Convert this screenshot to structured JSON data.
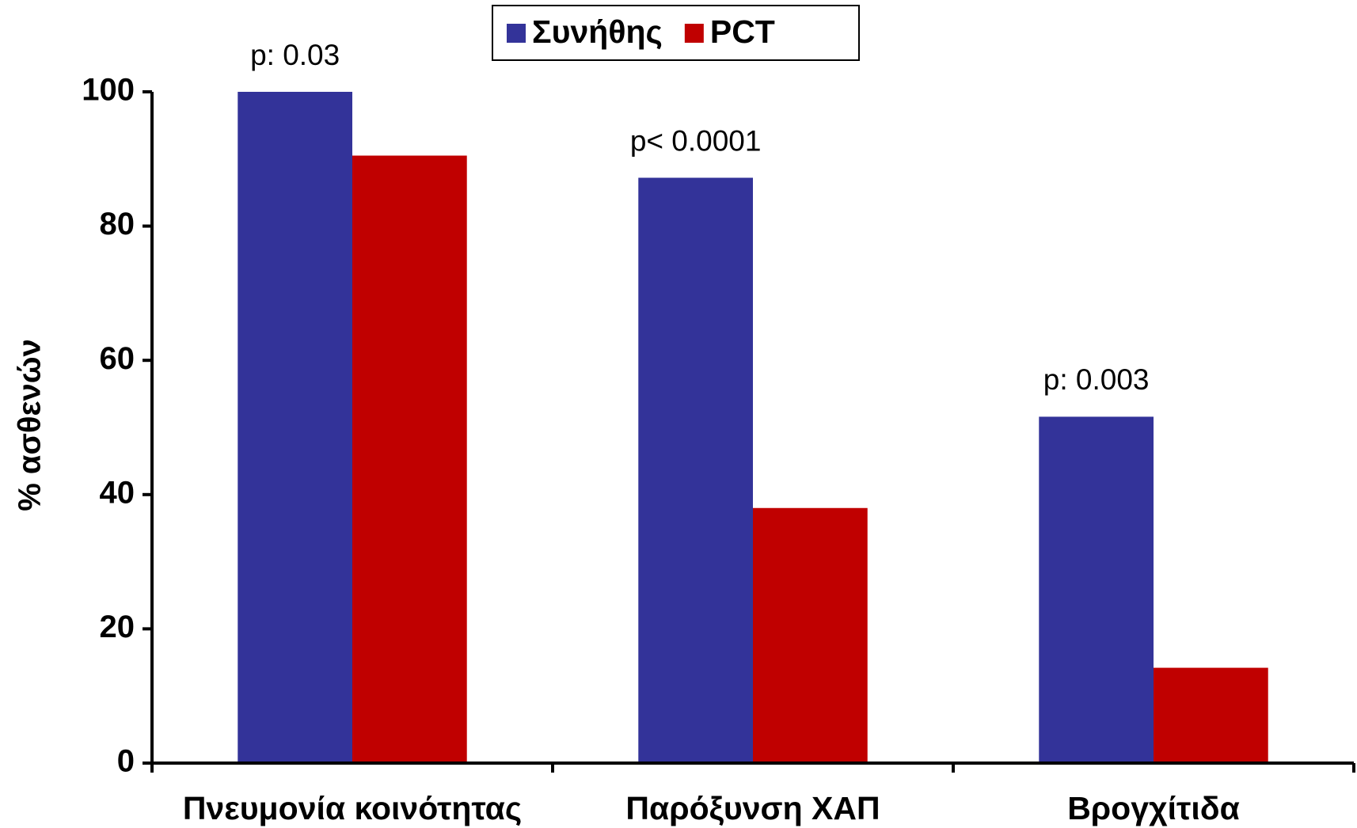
{
  "chart_data": {
    "type": "bar",
    "y_label": "% ασθενών",
    "categories": [
      "Πνευμονία κοινότητας",
      "Παρόξυνση ΧΑΠ",
      "Βρογχίτιδα"
    ],
    "series": [
      {
        "name": "Συνήθης",
        "color": "#333399",
        "values": [
          100,
          87.2,
          51.6
        ]
      },
      {
        "name": "PCT",
        "color": "#c00000",
        "values": [
          90.5,
          38,
          14.2
        ]
      }
    ],
    "annotations": [
      "p: 0.03",
      "p< 0.0001",
      "p: 0.003"
    ],
    "ylim": [
      0,
      100
    ],
    "yticks": [
      0,
      20,
      40,
      60,
      80,
      100
    ],
    "grid": false,
    "legend": "top"
  }
}
